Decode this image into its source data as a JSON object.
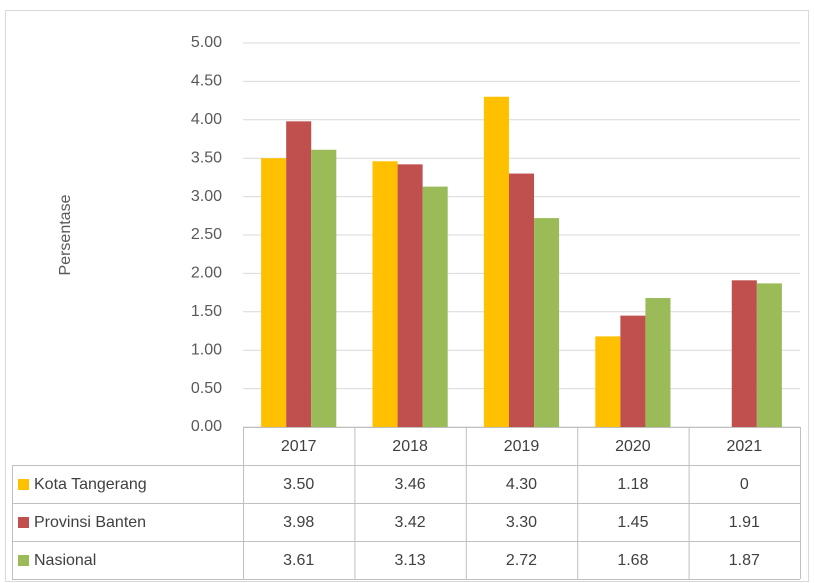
{
  "chart_data": {
    "type": "bar",
    "y_label": "Persentase",
    "categories": [
      "2017",
      "2018",
      "2019",
      "2020",
      "2021"
    ],
    "series": [
      {
        "name": "Kota Tangerang",
        "color": "#FFC000",
        "values": [
          3.5,
          3.46,
          4.3,
          1.18,
          0
        ],
        "value_labels": [
          "3.50",
          "3.46",
          "4.30",
          "1.18",
          "0"
        ]
      },
      {
        "name": "Provinsi Banten",
        "color": "#C0504D",
        "values": [
          3.98,
          3.42,
          3.3,
          1.45,
          1.91
        ],
        "value_labels": [
          "3.98",
          "3.42",
          "3.30",
          "1.45",
          "1.91"
        ]
      },
      {
        "name": "Nasional",
        "color": "#9BBB59",
        "values": [
          3.61,
          3.13,
          2.72,
          1.68,
          1.87
        ],
        "value_labels": [
          "3.61",
          "3.13",
          "2.72",
          "1.68",
          "1.87"
        ]
      }
    ],
    "ylim": [
      0,
      5
    ],
    "yticks": [
      {
        "value": 0,
        "label": "0.00"
      },
      {
        "value": 0.5,
        "label": "0.50"
      },
      {
        "value": 1,
        "label": "1.00"
      },
      {
        "value": 1.5,
        "label": "1.50"
      },
      {
        "value": 2,
        "label": "2.00"
      },
      {
        "value": 2.5,
        "label": "2.50"
      },
      {
        "value": 3,
        "label": "3.00"
      },
      {
        "value": 3.5,
        "label": "3.50"
      },
      {
        "value": 4,
        "label": "4.00"
      },
      {
        "value": 4.5,
        "label": "4.50"
      },
      {
        "value": 5,
        "label": "5.00"
      }
    ],
    "grid": true
  }
}
